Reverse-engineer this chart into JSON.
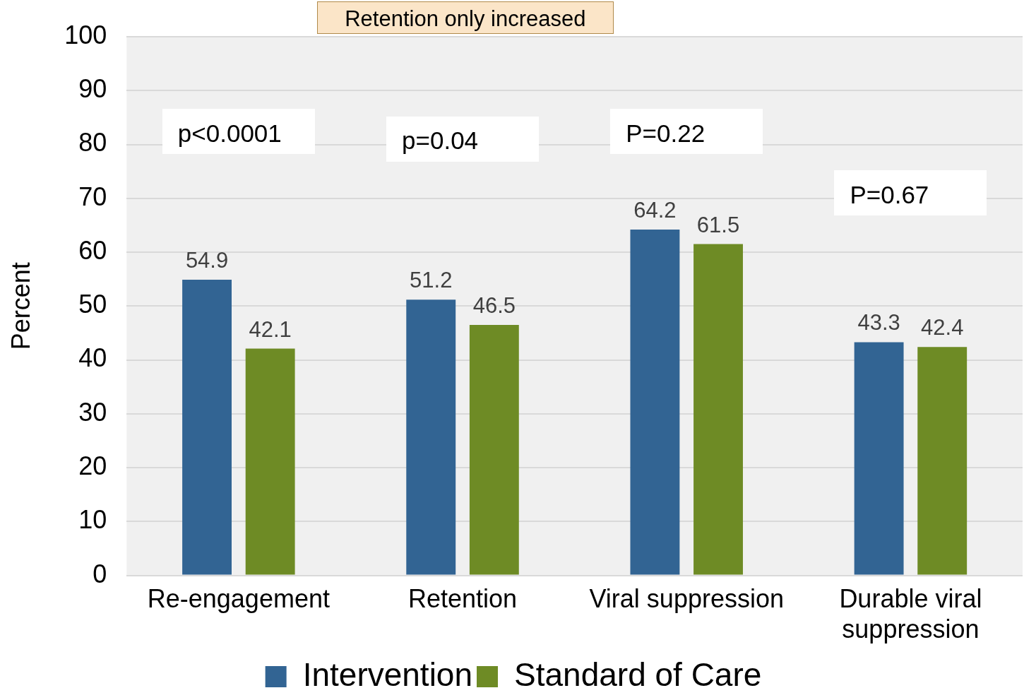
{
  "chart_data": {
    "type": "bar",
    "categories": [
      "Re-engagement",
      "Retention",
      "Viral suppression",
      "Durable viral suppression"
    ],
    "series": [
      {
        "name": "Intervention",
        "color": "#326493",
        "values": [
          54.9,
          51.2,
          64.2,
          43.3
        ]
      },
      {
        "name": "Standard of Care",
        "color": "#6e8b25",
        "values": [
          42.1,
          46.5,
          61.5,
          42.4
        ]
      }
    ],
    "ylabel": "Percent",
    "ylim": [
      0,
      100
    ],
    "yticks": [
      0,
      10,
      20,
      30,
      40,
      50,
      60,
      70,
      80,
      90,
      100
    ],
    "grid": "y",
    "legend": "bottom",
    "data_labels": true,
    "annotations": [
      "Retention only increased",
      "p<0.0001",
      "p=0.04",
      "P=0.22",
      "P=0.67"
    ]
  }
}
